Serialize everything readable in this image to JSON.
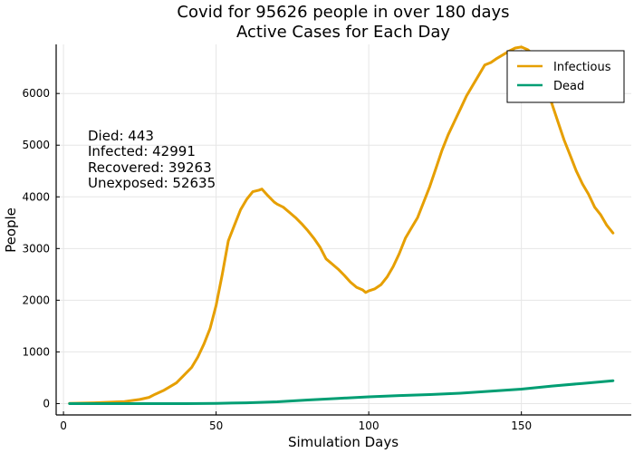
{
  "chart_data": {
    "type": "line",
    "title": "Covid for 95626 people in  over 180 days",
    "subtitle": "Active Cases for Each Day",
    "xlabel": "Simulation Days",
    "ylabel": "People",
    "xlim": [
      -2.4,
      186
    ],
    "ylim": [
      -220,
      6950
    ],
    "xticks": [
      0,
      50,
      100,
      150
    ],
    "yticks": [
      0,
      1000,
      2000,
      3000,
      4000,
      5000,
      6000
    ],
    "grid": true,
    "legend_position": "top-right",
    "annotations": [
      "Died: 443",
      "Infected: 42991",
      "Recovered: 39263",
      "Unexposed: 52635"
    ],
    "series": [
      {
        "name": "Infectious",
        "color": "#e69f00",
        "x": [
          2,
          10,
          20,
          25,
          28,
          30,
          33,
          35,
          37,
          39,
          42,
          44,
          46,
          48,
          50,
          52,
          54,
          56,
          58,
          60,
          62,
          64,
          65,
          67,
          69,
          70,
          72,
          74,
          76,
          78,
          80,
          82,
          84,
          86,
          88,
          90,
          92,
          94,
          96,
          98,
          99,
          100,
          102,
          104,
          106,
          108,
          110,
          112,
          114,
          116,
          118,
          120,
          122,
          124,
          126,
          128,
          130,
          132,
          134,
          136,
          138,
          140,
          142,
          144,
          146,
          148,
          150,
          152,
          154,
          156,
          158,
          160,
          162,
          164,
          166,
          168,
          170,
          172,
          174,
          176,
          178,
          180
        ],
        "values": [
          5,
          15,
          40,
          80,
          120,
          180,
          260,
          330,
          400,
          520,
          700,
          900,
          1150,
          1450,
          1900,
          2500,
          3150,
          3450,
          3750,
          3950,
          4100,
          4130,
          4150,
          4020,
          3900,
          3860,
          3800,
          3700,
          3600,
          3480,
          3350,
          3200,
          3030,
          2800,
          2700,
          2600,
          2480,
          2350,
          2250,
          2200,
          2150,
          2180,
          2220,
          2300,
          2450,
          2650,
          2900,
          3200,
          3400,
          3600,
          3900,
          4200,
          4550,
          4900,
          5200,
          5450,
          5700,
          5950,
          6150,
          6350,
          6550,
          6600,
          6680,
          6750,
          6820,
          6880,
          6900,
          6850,
          6750,
          6450,
          6150,
          5800,
          5450,
          5100,
          4800,
          4500,
          4250,
          4050,
          3800,
          3650,
          3450,
          3300
        ]
      },
      {
        "name": "Dead",
        "color": "#009e73",
        "x": [
          2,
          20,
          40,
          50,
          60,
          70,
          80,
          90,
          100,
          110,
          120,
          130,
          140,
          150,
          160,
          170,
          180
        ],
        "values": [
          0,
          0,
          0,
          5,
          15,
          35,
          70,
          100,
          130,
          155,
          175,
          200,
          240,
          280,
          340,
          390,
          443
        ]
      }
    ]
  }
}
